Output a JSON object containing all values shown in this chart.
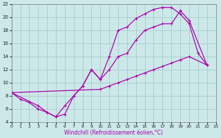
{
  "xlabel": "Windchill (Refroidissement éolien,°C)",
  "bg_color": "#cce8e8",
  "grid_color": "#a8cccc",
  "line_color": "#aa00aa",
  "xlim": [
    0,
    23
  ],
  "ylim": [
    4,
    22
  ],
  "xticks": [
    0,
    1,
    2,
    3,
    4,
    5,
    6,
    7,
    8,
    9,
    10,
    11,
    12,
    13,
    14,
    15,
    16,
    17,
    18,
    19,
    20,
    21,
    22,
    23
  ],
  "yticks": [
    4,
    6,
    8,
    10,
    12,
    14,
    16,
    18,
    20,
    22
  ],
  "series": [
    {
      "x": [
        0,
        1,
        2,
        3,
        4,
        5,
        6,
        7,
        8,
        9,
        10,
        11,
        12,
        13,
        14,
        15,
        16,
        17,
        18,
        19,
        20,
        21,
        22
      ],
      "y": [
        8.5,
        7.5,
        7.0,
        6.0,
        5.5,
        4.8,
        5.2,
        8.0,
        9.5,
        12.0,
        10.5,
        14.0,
        18.0,
        18.5,
        19.8,
        20.5,
        21.2,
        21.5,
        21.5,
        20.5,
        19.0,
        14.5,
        12.7
      ]
    },
    {
      "x": [
        0,
        10,
        11,
        12,
        13,
        14,
        15,
        16,
        17,
        18,
        19,
        20,
        22
      ],
      "y": [
        8.5,
        9.0,
        9.5,
        10.0,
        10.5,
        11.0,
        11.5,
        12.0,
        12.5,
        13.0,
        13.5,
        14.0,
        12.7
      ]
    },
    {
      "x": [
        0,
        3,
        4,
        5,
        6,
        7,
        8,
        9,
        10,
        11,
        12,
        13,
        14,
        15,
        16,
        17,
        18,
        19,
        20,
        22
      ],
      "y": [
        8.5,
        6.5,
        5.5,
        4.8,
        6.5,
        8.0,
        9.5,
        12.0,
        10.5,
        12.0,
        14.0,
        14.5,
        16.5,
        18.0,
        18.5,
        19.0,
        19.0,
        21.0,
        19.5,
        12.7
      ]
    }
  ],
  "marker": "+",
  "markersize": 3.5,
  "linewidth": 0.9,
  "tick_fontsize": 5,
  "xlabel_fontsize": 5.5
}
